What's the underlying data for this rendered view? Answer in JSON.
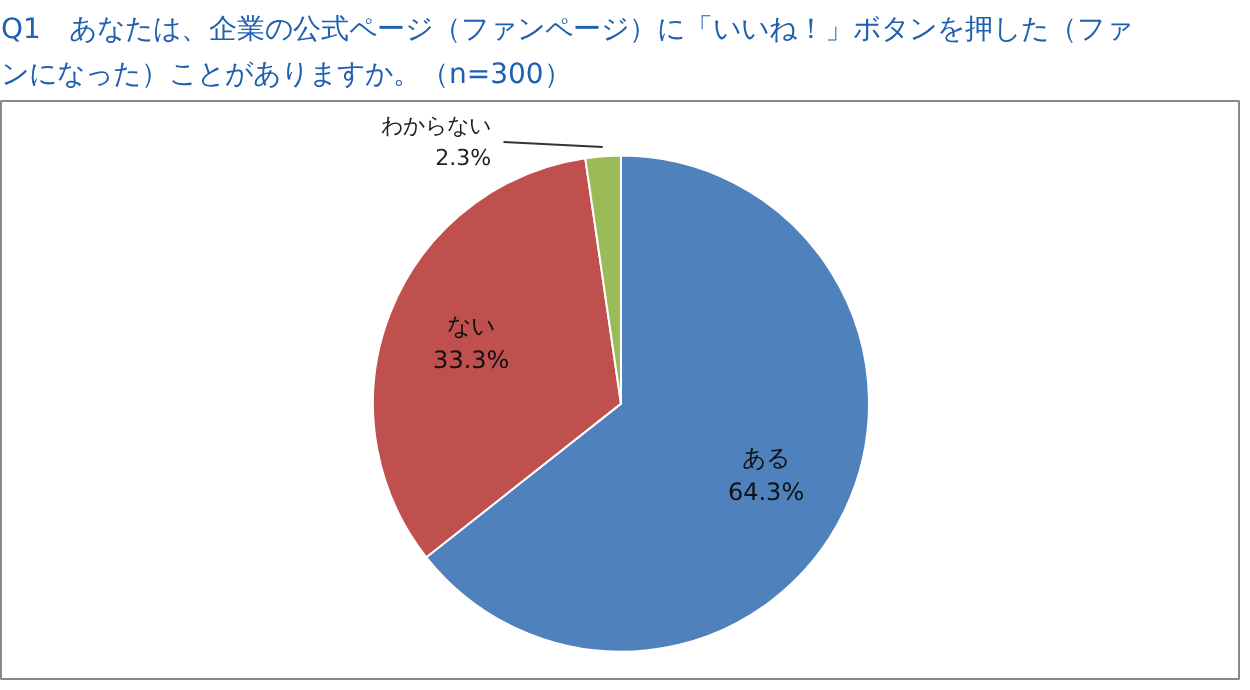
{
  "chart_data": {
    "type": "pie",
    "title": "Q1　あなたは、企業の公式ページ（ファンページ）に「いいね！」ボタンを押した（ファンになった）ことがありますか。（n=300）",
    "categories": [
      "ある",
      "ない",
      "わからない"
    ],
    "values": [
      64.3,
      33.3,
      2.3
    ],
    "colors": [
      "#4f81bd",
      "#c0504d",
      "#9bbb59"
    ],
    "value_labels": [
      "64.3%",
      "33.3%",
      "2.3%"
    ]
  }
}
